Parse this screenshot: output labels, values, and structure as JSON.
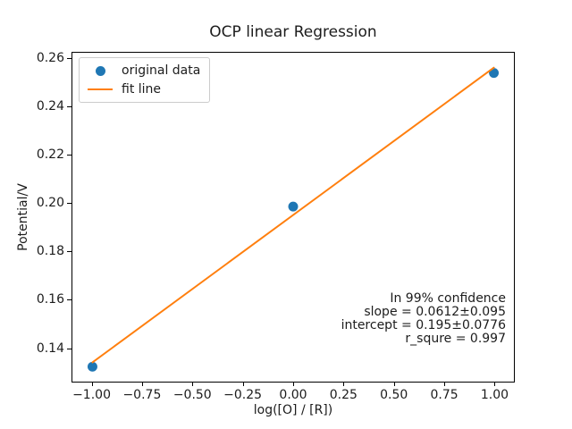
{
  "figure": {
    "background": "#ffffff",
    "spine_color": "#000000"
  },
  "chart_data": {
    "type": "scatter",
    "title": "OCP linear Regression",
    "xlabel": "log([O] / [R])",
    "ylabel": "Potential/V",
    "xlim": [
      -1.1,
      1.1
    ],
    "ylim": [
      0.1258,
      0.2624
    ],
    "grid": false,
    "xticks": [
      {
        "v": -1.0,
        "label": "−1.00"
      },
      {
        "v": -0.75,
        "label": "−0.75"
      },
      {
        "v": -0.5,
        "label": "−0.50"
      },
      {
        "v": -0.25,
        "label": "−0.25"
      },
      {
        "v": 0.0,
        "label": "0.00"
      },
      {
        "v": 0.25,
        "label": "0.25"
      },
      {
        "v": 0.5,
        "label": "0.50"
      },
      {
        "v": 0.75,
        "label": "0.75"
      },
      {
        "v": 1.0,
        "label": "1.00"
      }
    ],
    "yticks": [
      {
        "v": 0.14,
        "label": "0.14"
      },
      {
        "v": 0.16,
        "label": "0.16"
      },
      {
        "v": 0.18,
        "label": "0.18"
      },
      {
        "v": 0.2,
        "label": "0.20"
      },
      {
        "v": 0.22,
        "label": "0.22"
      },
      {
        "v": 0.24,
        "label": "0.24"
      },
      {
        "v": 0.26,
        "label": "0.26"
      }
    ],
    "series": [
      {
        "name": "original data",
        "kind": "scatter",
        "color": "#1f77b4",
        "marker_radius": 5.5,
        "x": [
          -1,
          0,
          1
        ],
        "y": [
          0.132,
          0.1985,
          0.254
        ]
      },
      {
        "name": "fit line",
        "kind": "line",
        "color": "#ff7f0e",
        "line_width": 2,
        "x": [
          -1,
          1
        ],
        "y": [
          0.1338,
          0.2562
        ]
      }
    ],
    "legend": {
      "position": "upper left",
      "items": [
        {
          "label": "original data"
        },
        {
          "label": "fit line"
        }
      ]
    },
    "annotation": {
      "align": "right",
      "lines": [
        "In 99% confidence",
        "slope = 0.0612±0.095",
        "intercept = 0.195±0.0776",
        "r_squre = 0.997"
      ]
    },
    "stats": {
      "confidence": "99%",
      "slope": 0.0612,
      "slope_error": 0.095,
      "intercept": 0.195,
      "intercept_error": 0.0776,
      "r_squre": 0.997
    }
  }
}
